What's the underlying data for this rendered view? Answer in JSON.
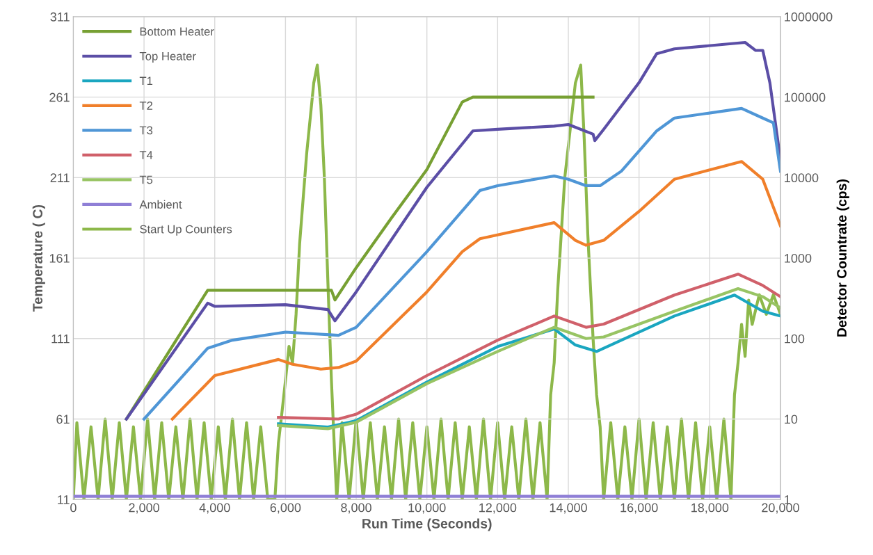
{
  "chart_data": {
    "type": "line",
    "xlabel": "Run Time (Seconds)",
    "ylabel": "Temperature ( C)",
    "y2label": "Detector Countrate (cps)",
    "xlim": [
      0,
      20000
    ],
    "xticks": [
      {
        "value": 0,
        "label": "0"
      },
      {
        "value": 2000,
        "label": "2,000"
      },
      {
        "value": 4000,
        "label": "4,000"
      },
      {
        "value": 6000,
        "label": "6,000"
      },
      {
        "value": 8000,
        "label": "8,000"
      },
      {
        "value": 10000,
        "label": "10,000"
      },
      {
        "value": 12000,
        "label": "12,000"
      },
      {
        "value": 14000,
        "label": "14,000"
      },
      {
        "value": 16000,
        "label": "16,000"
      },
      {
        "value": 18000,
        "label": "18,000"
      },
      {
        "value": 20000,
        "label": "20,000"
      }
    ],
    "ylim": [
      11,
      311
    ],
    "yticks": [
      11,
      61,
      111,
      161,
      211,
      261,
      311
    ],
    "y2lim": [
      1,
      1000000
    ],
    "y2ticks": [
      1,
      10,
      100,
      1000,
      10000,
      100000,
      1000000
    ],
    "log": "y2",
    "grid": true,
    "legend": "top left",
    "series": [
      {
        "name": "Bottom Heater",
        "color": "#77a033",
        "x": [
          1500,
          3800,
          7300,
          7400,
          8000,
          9000,
          10000,
          11000,
          11300,
          14700
        ],
        "values": [
          61,
          141,
          141,
          135,
          155,
          186,
          216,
          258,
          261,
          261
        ]
      },
      {
        "name": "Top Heater",
        "color": "#5b4ea6",
        "x": [
          1500,
          3800,
          4000,
          6000,
          7200,
          7400,
          8000,
          10000,
          11300,
          12000,
          13600,
          14000,
          14700,
          14750,
          15000,
          16000,
          16500,
          17000,
          19000,
          19300,
          19500,
          19700,
          20000
        ],
        "values": [
          61,
          133,
          131,
          132,
          129,
          122,
          140,
          205,
          240,
          241,
          243,
          244,
          238,
          234,
          241,
          270,
          288,
          291,
          295,
          290,
          290,
          270,
          222
        ]
      },
      {
        "name": "T1",
        "color": "#1aa6c0",
        "x": [
          5800,
          7200,
          8000,
          10000,
          12000,
          13600,
          14200,
          14800,
          15500,
          17000,
          18700,
          19500,
          20000
        ],
        "values": [
          58,
          56,
          60,
          84,
          106,
          117,
          107,
          103,
          110,
          125,
          138,
          128,
          125
        ]
      },
      {
        "name": "T2",
        "color": "#f07f2a",
        "x": [
          2800,
          4000,
          5800,
          6200,
          7000,
          7500,
          8000,
          10000,
          11000,
          11500,
          13600,
          14200,
          14500,
          15000,
          16000,
          17000,
          18900,
          19500,
          20000
        ],
        "values": [
          61,
          88,
          98,
          95,
          92,
          93,
          97,
          140,
          165,
          173,
          183,
          172,
          169,
          172,
          190,
          210,
          221,
          210,
          181
        ]
      },
      {
        "name": "T3",
        "color": "#4f96d6",
        "x": [
          2000,
          3800,
          4500,
          6000,
          7500,
          8000,
          10000,
          11500,
          12000,
          13600,
          14000,
          14500,
          14900,
          15500,
          16500,
          17000,
          18900,
          19500,
          19800,
          20000
        ],
        "values": [
          61,
          105,
          110,
          115,
          113,
          118,
          165,
          203,
          206,
          212,
          210,
          206,
          206,
          215,
          240,
          248,
          254,
          248,
          245,
          215
        ]
      },
      {
        "name": "T4",
        "color": "#d0606a",
        "x": [
          5800,
          7500,
          8000,
          10000,
          12000,
          13600,
          14500,
          15000,
          17000,
          18800,
          19500,
          20000
        ],
        "values": [
          62,
          61,
          64,
          88,
          110,
          125,
          118,
          120,
          138,
          151,
          144,
          137
        ]
      },
      {
        "name": "T5",
        "color": "#98c464",
        "x": [
          5800,
          7200,
          8000,
          10000,
          12000,
          13600,
          14500,
          15000,
          17000,
          18800,
          19500,
          20000
        ],
        "values": [
          57,
          55,
          59,
          83,
          103,
          118,
          111,
          112,
          128,
          142,
          137,
          130
        ]
      },
      {
        "name": "Ambient",
        "color": "#8f7fd6",
        "x": [
          0,
          20000
        ],
        "values": [
          13,
          13
        ]
      },
      {
        "name": "Start Up Counters",
        "color": "#8db84a",
        "axis": "y2",
        "x": [
          0,
          100,
          300,
          500,
          700,
          900,
          1100,
          1300,
          1500,
          1700,
          1900,
          2100,
          2300,
          2500,
          2700,
          2900,
          3100,
          3300,
          3500,
          3700,
          3900,
          4100,
          4300,
          4500,
          4700,
          4900,
          5100,
          5300,
          5500,
          5700,
          5800,
          5900,
          6000,
          6100,
          6200,
          6300,
          6400,
          6600,
          6800,
          6900,
          7000,
          7100,
          7200,
          7300,
          7400,
          7450,
          7600,
          7800,
          8000,
          8200,
          8400,
          8600,
          8800,
          9000,
          9200,
          9400,
          9600,
          9800,
          10000,
          10200,
          10400,
          10600,
          10800,
          11000,
          11200,
          11400,
          11600,
          11800,
          12000,
          12200,
          12400,
          12600,
          12800,
          13000,
          13200,
          13400,
          13500,
          13600,
          13700,
          13900,
          14200,
          14350,
          14450,
          14550,
          14700,
          14800,
          14900,
          15000,
          15200,
          15400,
          15600,
          15800,
          16000,
          16200,
          16400,
          16600,
          16800,
          17000,
          17200,
          17400,
          17600,
          17800,
          18000,
          18200,
          18400,
          18600,
          18700,
          18800,
          18900,
          19000,
          19100,
          19200,
          19400,
          19600,
          19800,
          20000
        ],
        "values": [
          1,
          9,
          1,
          8,
          1,
          10,
          1,
          9,
          1,
          8,
          1,
          10,
          1,
          9,
          1,
          8,
          1,
          10,
          1,
          9,
          1,
          8,
          1,
          10,
          1,
          9,
          1,
          8,
          1,
          1,
          5,
          12,
          30,
          80,
          50,
          200,
          1500,
          20000,
          150000,
          250000,
          80000,
          10000,
          500,
          30,
          3,
          1,
          9,
          1,
          10,
          1,
          9,
          1,
          8,
          1,
          10,
          1,
          9,
          1,
          8,
          1,
          10,
          1,
          9,
          1,
          8,
          1,
          10,
          1,
          9,
          1,
          8,
          1,
          10,
          1,
          9,
          1,
          20,
          50,
          400,
          10000,
          150000,
          250000,
          30000,
          2000,
          100,
          20,
          8,
          1,
          9,
          1,
          8,
          1,
          10,
          1,
          9,
          1,
          8,
          1,
          10,
          1,
          9,
          1,
          8,
          1,
          10,
          1,
          20,
          50,
          150,
          60,
          300,
          150,
          350,
          200,
          350,
          200
        ]
      }
    ]
  }
}
